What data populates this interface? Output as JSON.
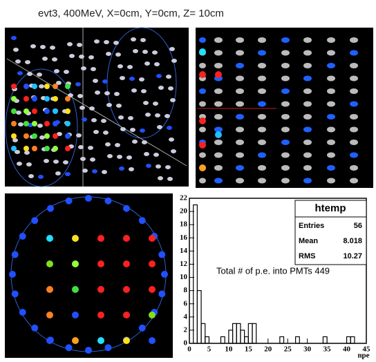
{
  "title": "evt3, 400MeV, X=0cm, Y=0cm, Z= 10cm",
  "chart_data": {
    "type": "histogram",
    "bins": [
      0,
      1,
      2,
      3,
      4,
      5,
      6,
      7,
      8,
      9,
      10,
      11,
      12,
      13,
      14,
      15,
      16,
      17,
      18,
      19,
      20,
      21,
      22,
      23,
      24,
      25,
      26,
      27,
      28,
      29,
      30,
      31,
      32,
      33,
      34,
      35,
      36,
      37,
      38,
      39,
      40,
      41,
      42,
      43,
      44,
      45
    ],
    "values": [
      0,
      21,
      8,
      3,
      1,
      0,
      0,
      0,
      1,
      0,
      2,
      3,
      3,
      2,
      1,
      3,
      3,
      0,
      0,
      0,
      0,
      0,
      0,
      1,
      0,
      0,
      0,
      1,
      0,
      0,
      0,
      0,
      0,
      0,
      1,
      0,
      0,
      0,
      0,
      0,
      1,
      1,
      0,
      0,
      0
    ],
    "color": "#000000",
    "xlim": [
      0,
      45
    ],
    "xticks": [
      0,
      5,
      10,
      15,
      20,
      25,
      30,
      35,
      40,
      45
    ],
    "ylim": [
      0,
      22
    ],
    "yticks": [
      0,
      2,
      4,
      6,
      8,
      10,
      12,
      14,
      16,
      18,
      20,
      22
    ],
    "x_label": "npe",
    "annotation": "Total # of p.e. into PMTs  449",
    "stats": {
      "title": "htemp",
      "rows": [
        [
          "Entries",
          "56"
        ],
        [
          "Mean",
          "8.018"
        ],
        [
          "RMS",
          "10.27"
        ]
      ]
    }
  }
}
